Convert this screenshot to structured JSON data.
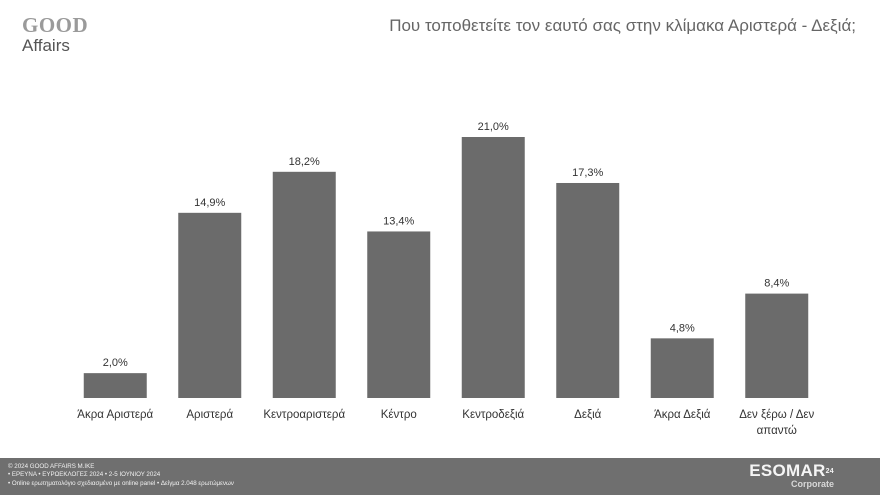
{
  "header": {
    "logo_line1": "GOOD",
    "logo_line2": "Affairs",
    "title": "Που τοποθετείτε τον εαυτό σας στην κλίμακα Αριστερά - Δεξιά;"
  },
  "chart_data": {
    "type": "bar",
    "categories": [
      "Άκρα Αριστερά",
      "Αριστερά",
      "Κεντροαριστερά",
      "Κέντρο",
      "Κεντροδεξιά",
      "Δεξιά",
      "Άκρα Δεξιά",
      "Δεν ξέρω / Δεν απαντώ"
    ],
    "values": [
      2.0,
      14.9,
      18.2,
      13.4,
      21.0,
      17.3,
      4.8,
      8.4
    ],
    "value_labels": [
      "2,0%",
      "14,9%",
      "18,2%",
      "13,4%",
      "21,0%",
      "17,3%",
      "4,8%",
      "8,4%"
    ],
    "bar_color": "#6b6b6b",
    "ylim": [
      0,
      21.0
    ],
    "grid": false,
    "legend": "none"
  },
  "footer": {
    "line1": "© 2024 GOOD AFFAIRS M.IKE",
    "line2": "• ΕΡΕΥΝΑ • ΕΥΡΩΕΚΛΟΓΕΣ 2024 • 2-5 ΙΟΥΝΙΟΥ 2024",
    "line3": "• Online ερωτηματολόγιο σχεδιασμένο με online panel  • Δείγμα 2.048 ερωτώμενων",
    "badge_main": "ESOMAR",
    "badge_sup": "24",
    "badge_sub": "Corporate",
    "background": "#6f6f6f"
  }
}
